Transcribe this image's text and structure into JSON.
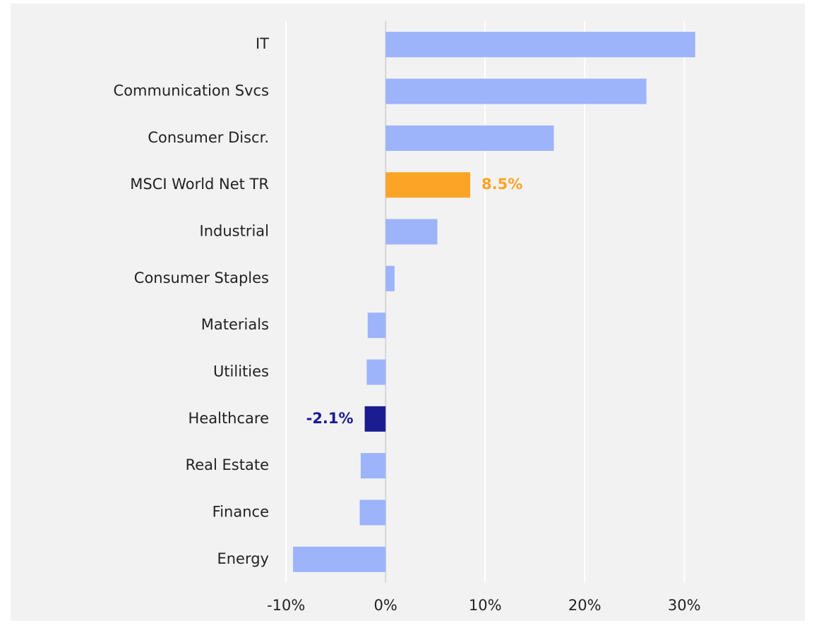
{
  "chart_data": {
    "type": "bar",
    "orientation": "horizontal",
    "categories": [
      "IT",
      "Communication Svcs",
      "Consumer Discr.",
      "MSCI World Net TR",
      "Industrial",
      "Consumer Staples",
      "Materials",
      "Utilities",
      "Healthcare",
      "Real Estate",
      "Finance",
      "Energy"
    ],
    "values": [
      31.1,
      26.2,
      16.9,
      8.5,
      5.2,
      0.9,
      -1.8,
      -1.9,
      -2.1,
      -2.5,
      -2.6,
      -9.3
    ],
    "value_labels": [
      null,
      null,
      null,
      "8.5%",
      null,
      null,
      null,
      null,
      "-2.1%",
      null,
      null,
      null
    ],
    "colors": [
      "#9db4fb",
      "#9db4fb",
      "#9db4fb",
      "#fca425",
      "#9db4fb",
      "#9db4fb",
      "#9db4fb",
      "#9db4fb",
      "#1c1c91",
      "#9db4fb",
      "#9db4fb",
      "#9db4fb"
    ],
    "xlim": [
      -12,
      38
    ],
    "xticks": [
      {
        "value": -10,
        "label": "-10%"
      },
      {
        "value": 0,
        "label": "0%"
      },
      {
        "value": 10,
        "label": "10%"
      },
      {
        "value": 20,
        "label": "20%"
      },
      {
        "value": 30,
        "label": "30%"
      }
    ],
    "grid": true
  }
}
